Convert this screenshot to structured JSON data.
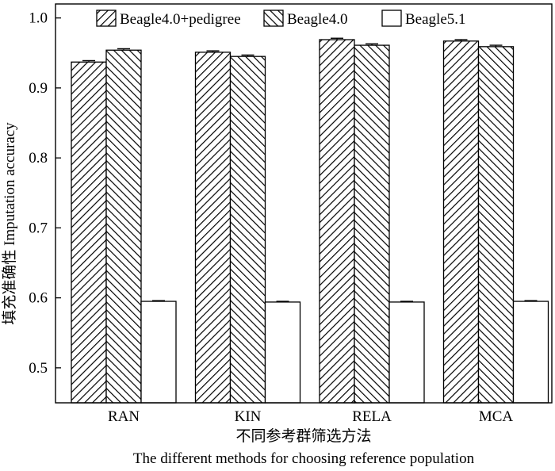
{
  "chart_data": {
    "type": "bar",
    "title": "",
    "ylabel": "填充准确性 Imputation accuracy",
    "xlabel_cn": "不同参考群筛选方法",
    "xlabel_en": "The different methods for choosing reference population",
    "categories": [
      "RAN",
      "KIN",
      "RELA",
      "MCA"
    ],
    "ylim": [
      0.45,
      1.02
    ],
    "yticks": [
      "0.5",
      "0.6",
      "0.7",
      "0.8",
      "0.9",
      "1.0"
    ],
    "ytick_values": [
      0.5,
      0.6,
      0.7,
      0.8,
      0.9,
      1.0
    ],
    "legend_placement": "top",
    "grid": false,
    "series": [
      {
        "name": "Beagle4.0+pedigree",
        "pattern": "hatch-forward",
        "values": [
          0.937,
          0.951,
          0.969,
          0.967
        ],
        "errors": [
          0.002,
          0.002,
          0.002,
          0.002
        ]
      },
      {
        "name": "Beagle4.0",
        "pattern": "hatch-backward",
        "values": [
          0.954,
          0.945,
          0.961,
          0.959
        ],
        "errors": [
          0.002,
          0.002,
          0.002,
          0.002
        ]
      },
      {
        "name": "Beagle5.1",
        "pattern": "solid-white",
        "values": [
          0.595,
          0.594,
          0.594,
          0.595
        ],
        "errors": [
          0.001,
          0.001,
          0.001,
          0.001
        ]
      }
    ]
  }
}
